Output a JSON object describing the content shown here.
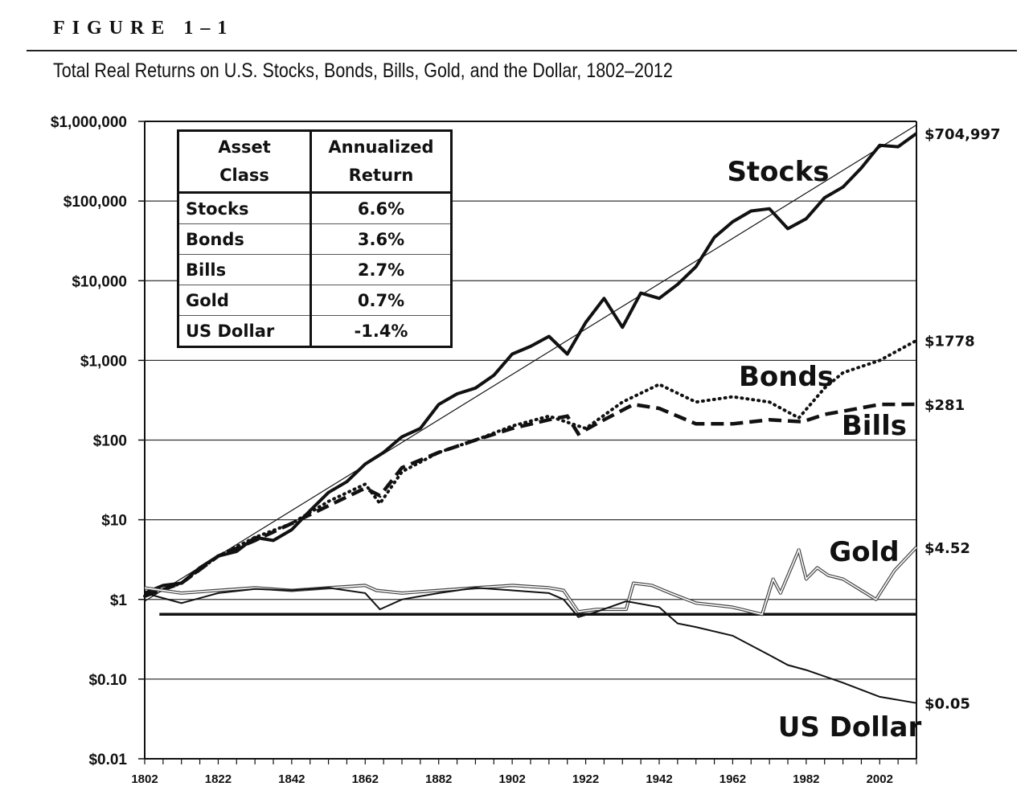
{
  "figure_label": "FIGURE 1–1",
  "title": "Total Real Returns on U.S. Stocks, Bonds, Bills, Gold, and the Dollar, 1802–2012",
  "legend_table": {
    "headers": [
      [
        "Asset",
        "Class"
      ],
      [
        "Annualized",
        "Return"
      ]
    ],
    "rows": [
      {
        "asset": "Stocks",
        "return": "6.6%"
      },
      {
        "asset": "Bonds",
        "return": "3.6%"
      },
      {
        "asset": "Bills",
        "return": "2.7%"
      },
      {
        "asset": "Gold",
        "return": "0.7%"
      },
      {
        "asset": "US Dollar",
        "return": "-1.4%"
      }
    ]
  },
  "chart_data": {
    "type": "line",
    "title": "Total Real Returns on U.S. Stocks, Bonds, Bills, Gold, and the Dollar, 1802–2012",
    "xlabel": "",
    "ylabel": "",
    "y_scale": "log",
    "xlim": [
      1802,
      2012
    ],
    "ylim": [
      0.01,
      1000000
    ],
    "grid": "horizontal",
    "x_ticks": [
      1802,
      1822,
      1842,
      1862,
      1882,
      1902,
      1922,
      1942,
      1962,
      1982,
      2002
    ],
    "y_ticks": [
      {
        "value": 1000000,
        "label": "$1,000,000"
      },
      {
        "value": 100000,
        "label": "$100,000"
      },
      {
        "value": 10000,
        "label": "$10,000"
      },
      {
        "value": 1000,
        "label": "$1,000"
      },
      {
        "value": 100,
        "label": "$100"
      },
      {
        "value": 10,
        "label": "$10"
      },
      {
        "value": 1,
        "label": "$1"
      },
      {
        "value": 0.1,
        "label": "$0.10"
      },
      {
        "value": 0.01,
        "label": "$0.01"
      }
    ],
    "reference_line": {
      "value": 0.65
    },
    "trend_line": {
      "x": [
        1802,
        2012
      ],
      "y": [
        0.95,
        900000
      ]
    },
    "series": [
      {
        "name": "Stocks",
        "end_label": "$704,997",
        "style": "solid-thick",
        "x": [
          1802,
          1807,
          1812,
          1817,
          1822,
          1827,
          1832,
          1837,
          1842,
          1847,
          1852,
          1857,
          1862,
          1867,
          1872,
          1877,
          1882,
          1887,
          1892,
          1897,
          1902,
          1907,
          1912,
          1917,
          1922,
          1927,
          1932,
          1937,
          1942,
          1947,
          1952,
          1957,
          1962,
          1967,
          1972,
          1977,
          1982,
          1987,
          1992,
          1997,
          2002,
          2007,
          2012
        ],
        "y": [
          1.2,
          1.5,
          1.6,
          2.5,
          3.5,
          4.0,
          6.0,
          5.5,
          7.5,
          13,
          22,
          30,
          50,
          70,
          110,
          140,
          280,
          380,
          450,
          650,
          1200,
          1500,
          2000,
          1200,
          3000,
          6000,
          2600,
          7000,
          6000,
          9000,
          15000,
          35000,
          55000,
          75000,
          80000,
          45000,
          60000,
          110000,
          150000,
          260000,
          500000,
          480000,
          704997
        ]
      },
      {
        "name": "Bonds",
        "end_label": "$1778",
        "style": "dotted",
        "x": [
          1802,
          1812,
          1822,
          1832,
          1842,
          1852,
          1862,
          1866,
          1872,
          1882,
          1892,
          1902,
          1912,
          1922,
          1932,
          1942,
          1952,
          1962,
          1972,
          1980,
          1987,
          1992,
          2002,
          2012
        ],
        "y": [
          1.1,
          1.6,
          3.5,
          6,
          9,
          17,
          28,
          16,
          40,
          70,
          100,
          150,
          200,
          140,
          300,
          500,
          300,
          350,
          300,
          190,
          450,
          700,
          1000,
          1778
        ]
      },
      {
        "name": "Bills",
        "end_label": "$281",
        "style": "dashed",
        "x": [
          1802,
          1812,
          1822,
          1832,
          1842,
          1852,
          1862,
          1866,
          1872,
          1882,
          1892,
          1902,
          1912,
          1917,
          1920,
          1927,
          1935,
          1942,
          1952,
          1962,
          1972,
          1981,
          1987,
          1992,
          2002,
          2012
        ],
        "y": [
          1.1,
          1.6,
          3.5,
          5.5,
          9,
          15,
          25,
          20,
          45,
          70,
          100,
          140,
          180,
          200,
          120,
          180,
          280,
          250,
          160,
          160,
          180,
          170,
          210,
          230,
          280,
          281
        ]
      },
      {
        "name": "Gold",
        "end_label": "$4.52",
        "style": "double",
        "x": [
          1802,
          1812,
          1822,
          1832,
          1842,
          1852,
          1862,
          1865,
          1872,
          1882,
          1892,
          1902,
          1912,
          1916,
          1920,
          1925,
          1933,
          1935,
          1940,
          1945,
          1952,
          1962,
          1970,
          1973,
          1975,
          1980,
          1982,
          1985,
          1988,
          1992,
          1997,
          2001,
          2006,
          2012
        ],
        "y": [
          1.4,
          1.2,
          1.3,
          1.4,
          1.3,
          1.4,
          1.5,
          1.3,
          1.2,
          1.3,
          1.4,
          1.5,
          1.4,
          1.3,
          0.7,
          0.75,
          0.75,
          1.6,
          1.5,
          1.2,
          0.9,
          0.8,
          0.65,
          1.8,
          1.2,
          4.2,
          1.8,
          2.5,
          2.0,
          1.8,
          1.3,
          1.0,
          2.3,
          4.52
        ]
      },
      {
        "name": "US Dollar",
        "end_label": "$0.05",
        "style": "solid-thin",
        "x": [
          1802,
          1812,
          1822,
          1832,
          1842,
          1852,
          1862,
          1866,
          1872,
          1882,
          1892,
          1902,
          1912,
          1916,
          1920,
          1925,
          1933,
          1942,
          1947,
          1952,
          1962,
          1972,
          1977,
          1982,
          1992,
          2002,
          2012
        ],
        "y": [
          1.2,
          0.9,
          1.2,
          1.35,
          1.3,
          1.4,
          1.2,
          0.75,
          1.0,
          1.2,
          1.4,
          1.3,
          1.2,
          1.0,
          0.6,
          0.7,
          0.95,
          0.8,
          0.5,
          0.45,
          0.35,
          0.2,
          0.15,
          0.13,
          0.09,
          0.06,
          0.05
        ]
      }
    ]
  }
}
